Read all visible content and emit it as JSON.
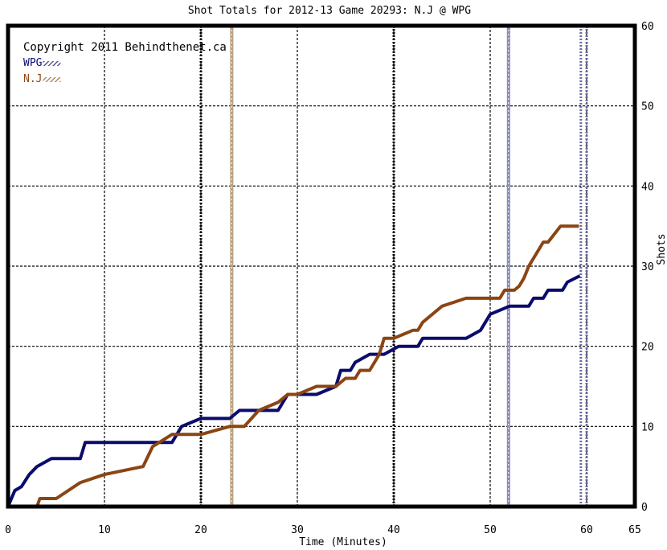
{
  "chart_data": {
    "type": "line",
    "title": "Shot Totals for 2012-13 Game 20293: N.J @ WPG",
    "xlabel": "Time (Minutes)",
    "ylabel": "Shots",
    "copyright": "Copyright 2011 Behindthenet.ca",
    "xlim": [
      0,
      65
    ],
    "ylim": [
      0,
      60
    ],
    "xticks": [
      0,
      10,
      20,
      30,
      40,
      50,
      60,
      65
    ],
    "yticks": [
      0,
      10,
      20,
      30,
      40,
      50,
      60
    ],
    "grid": true,
    "legend_position": "top-left",
    "series": [
      {
        "name": "WPG",
        "color": "#0b0b6e",
        "hatch_color": "#8a8ab8",
        "points": [
          [
            0,
            0
          ],
          [
            0.7,
            2
          ],
          [
            1.4,
            2.5
          ],
          [
            2.2,
            4
          ],
          [
            3,
            5
          ],
          [
            4.5,
            6
          ],
          [
            7.5,
            6
          ],
          [
            8,
            8
          ],
          [
            13,
            8
          ],
          [
            17,
            8
          ],
          [
            18,
            10
          ],
          [
            20,
            11
          ],
          [
            23,
            11
          ],
          [
            24,
            12
          ],
          [
            28,
            12
          ],
          [
            29,
            14
          ],
          [
            32,
            14
          ],
          [
            34,
            15
          ],
          [
            34.5,
            17
          ],
          [
            35.5,
            17
          ],
          [
            36,
            18
          ],
          [
            37.5,
            19
          ],
          [
            39,
            19
          ],
          [
            40.5,
            20
          ],
          [
            42.5,
            20
          ],
          [
            43,
            21
          ],
          [
            47.5,
            21
          ],
          [
            49,
            22
          ],
          [
            50,
            24
          ],
          [
            52,
            25
          ],
          [
            54,
            25
          ],
          [
            54.5,
            26
          ],
          [
            55.5,
            26
          ],
          [
            56,
            27
          ],
          [
            57.5,
            27
          ],
          [
            58,
            28
          ],
          [
            59.3,
            28.8
          ]
        ],
        "goal_marks": [
          51.9
        ]
      },
      {
        "name": "N.J",
        "color": "#8b4513",
        "hatch_color": "#b8a080",
        "points": [
          [
            0,
            0
          ],
          [
            3,
            0
          ],
          [
            3.3,
            1
          ],
          [
            5,
            1
          ],
          [
            7.5,
            3
          ],
          [
            10,
            4
          ],
          [
            14,
            5
          ],
          [
            15,
            7.5
          ],
          [
            17,
            9
          ],
          [
            20,
            9
          ],
          [
            23,
            10
          ],
          [
            24.5,
            10
          ],
          [
            26,
            12
          ],
          [
            28,
            13
          ],
          [
            29,
            14
          ],
          [
            30,
            14
          ],
          [
            32,
            15
          ],
          [
            34,
            15
          ],
          [
            35,
            16
          ],
          [
            36,
            16
          ],
          [
            36.5,
            17
          ],
          [
            37.5,
            17
          ],
          [
            38.5,
            19
          ],
          [
            39,
            21
          ],
          [
            40,
            21
          ],
          [
            42,
            22
          ],
          [
            42.5,
            22
          ],
          [
            43,
            23
          ],
          [
            45,
            25
          ],
          [
            47.5,
            26
          ],
          [
            51,
            26
          ],
          [
            51.5,
            27
          ],
          [
            52.5,
            27
          ],
          [
            53,
            27.5
          ],
          [
            53.5,
            28.5
          ],
          [
            54,
            30
          ],
          [
            55,
            32
          ],
          [
            55.5,
            33
          ],
          [
            56,
            33
          ],
          [
            57.3,
            35
          ],
          [
            59.2,
            35
          ]
        ],
        "goal_marks": [
          23.2
        ]
      }
    ],
    "period_lines": [
      20,
      40,
      60
    ],
    "end_marks": [
      59.4,
      60
    ]
  }
}
